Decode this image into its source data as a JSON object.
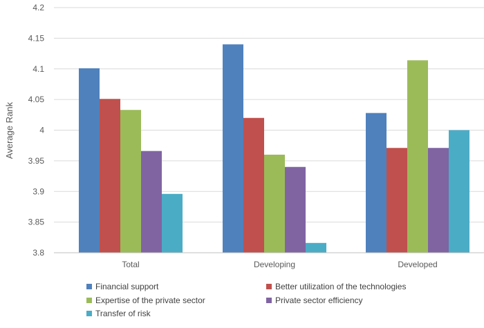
{
  "chart_data": {
    "type": "bar",
    "title": "",
    "xlabel": "",
    "ylabel": "Average Rank",
    "ylim": [
      3.8,
      4.2
    ],
    "yticks": [
      "3.8",
      "3.85",
      "3.9",
      "3.95",
      "4",
      "4.05",
      "4.1",
      "4.15",
      "4.2"
    ],
    "grid": true,
    "legend_position": "bottom",
    "categories": [
      "Total",
      "Developing",
      "Developed"
    ],
    "series": [
      {
        "name": "Financial support",
        "color": "#4F81BD",
        "values": [
          4.101,
          4.14,
          4.028
        ]
      },
      {
        "name": "Better utilization of the technologies",
        "color": "#C0504D",
        "values": [
          4.051,
          4.02,
          3.971
        ]
      },
      {
        "name": "Expertise of the private sector",
        "color": "#9BBB59",
        "values": [
          4.033,
          3.96,
          4.114
        ]
      },
      {
        "name": "Private sector efficiency",
        "color": "#8064A2",
        "values": [
          3.966,
          3.94,
          3.971
        ]
      },
      {
        "name": "Transfer of risk",
        "color": "#4BACC6",
        "values": [
          3.896,
          3.816,
          4.0
        ]
      }
    ]
  }
}
